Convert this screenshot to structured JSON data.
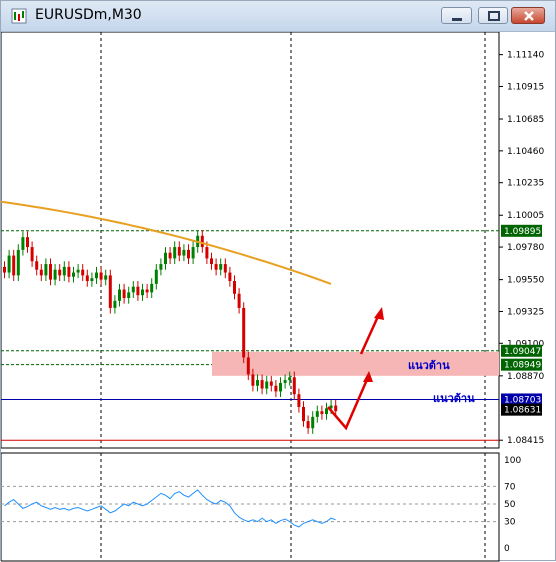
{
  "window": {
    "title": "EURUSDm,M30",
    "controls": [
      "minimize-icon",
      "maximize-icon",
      "close-icon"
    ]
  },
  "price_axis": {
    "labels": [
      "1.11140",
      "1.10915",
      "1.10685",
      "1.10460",
      "1.10235",
      "1.10005",
      "1.09780",
      "1.09550",
      "1.09325",
      "1.09100",
      "1.08870",
      "1.08415"
    ]
  },
  "price_tags": [
    {
      "value": "1.09895",
      "color": "#006400"
    },
    {
      "value": "1.09047",
      "color": "#006400"
    },
    {
      "value": "1.08949",
      "color": "#006400"
    },
    {
      "value": "1.08703",
      "color": "#0000aa"
    },
    {
      "value": "1.08631",
      "color": "#000000"
    }
  ],
  "annotations": {
    "resistance_zone": "แนวต้าน",
    "resistance_line": "แนวต้าน"
  },
  "indicator_axis": {
    "labels": [
      "100",
      "70",
      "50",
      "30",
      "0"
    ]
  },
  "colors": {
    "bull_candle": "#008000",
    "bear_candle": "#d40000",
    "moving_average": "#e8a020",
    "indicator_line": "#1e90ff",
    "zone_fill": "#f7b6b6",
    "arrow": "#e00000"
  },
  "chart_data": {
    "type": "line",
    "symbol": "EURUSDm",
    "timeframe": "M30",
    "ylim": [
      1.0836,
      1.113
    ],
    "close_prices": [
      1.096,
      1.0972,
      1.0958,
      1.0976,
      1.0985,
      1.0978,
      1.0968,
      1.0962,
      1.0958,
      1.0966,
      1.0955,
      1.0962,
      1.0958,
      1.0964,
      1.0957,
      1.096,
      1.0962,
      1.0958,
      1.0954,
      1.0956,
      1.096,
      1.0955,
      1.0958,
      1.0935,
      1.094,
      1.0948,
      1.0942,
      1.0946,
      1.095,
      1.0944,
      1.0948,
      1.0946,
      1.0952,
      1.0962,
      1.0966,
      1.0974,
      1.097,
      1.0978,
      1.0972,
      1.0976,
      1.097,
      1.0978,
      1.0986,
      1.0978,
      1.097,
      1.0966,
      1.0962,
      1.0966,
      1.096,
      1.0954,
      1.0945,
      1.0935,
      1.09,
      1.0888,
      1.088,
      1.0884,
      1.0878,
      1.0883,
      1.088,
      1.0876,
      1.0882,
      1.0884,
      1.0886,
      1.0874,
      1.0865,
      1.0855,
      1.085,
      1.0858,
      1.0862,
      1.086,
      1.0864,
      1.0866,
      1.0862
    ],
    "moving_average": {
      "start": 1.101,
      "end": 1.0952
    },
    "levels": {
      "green_dashed": [
        1.09895,
        1.09047,
        1.08949
      ],
      "blue_solid": 1.08703,
      "black_bid": 1.08631,
      "red_solid": 1.08415
    },
    "resistance_zone": [
      1.0887,
      1.0904
    ],
    "indicator": {
      "type": "line",
      "ylim": [
        0,
        100
      ],
      "levels": [
        70,
        50,
        30
      ],
      "values": [
        48,
        52,
        55,
        50,
        45,
        47,
        50,
        52,
        48,
        46,
        44,
        46,
        44,
        45,
        43,
        45,
        46,
        44,
        42,
        44,
        46,
        48,
        44,
        40,
        42,
        46,
        50,
        48,
        52,
        50,
        48,
        50,
        54,
        58,
        62,
        60,
        56,
        62,
        64,
        60,
        58,
        62,
        66,
        60,
        55,
        52,
        50,
        54,
        52,
        48,
        40,
        35,
        32,
        30,
        32,
        30,
        34,
        30,
        32,
        28,
        31,
        33,
        30,
        26,
        24,
        28,
        30,
        32,
        30,
        28,
        30,
        34,
        32
      ]
    }
  }
}
